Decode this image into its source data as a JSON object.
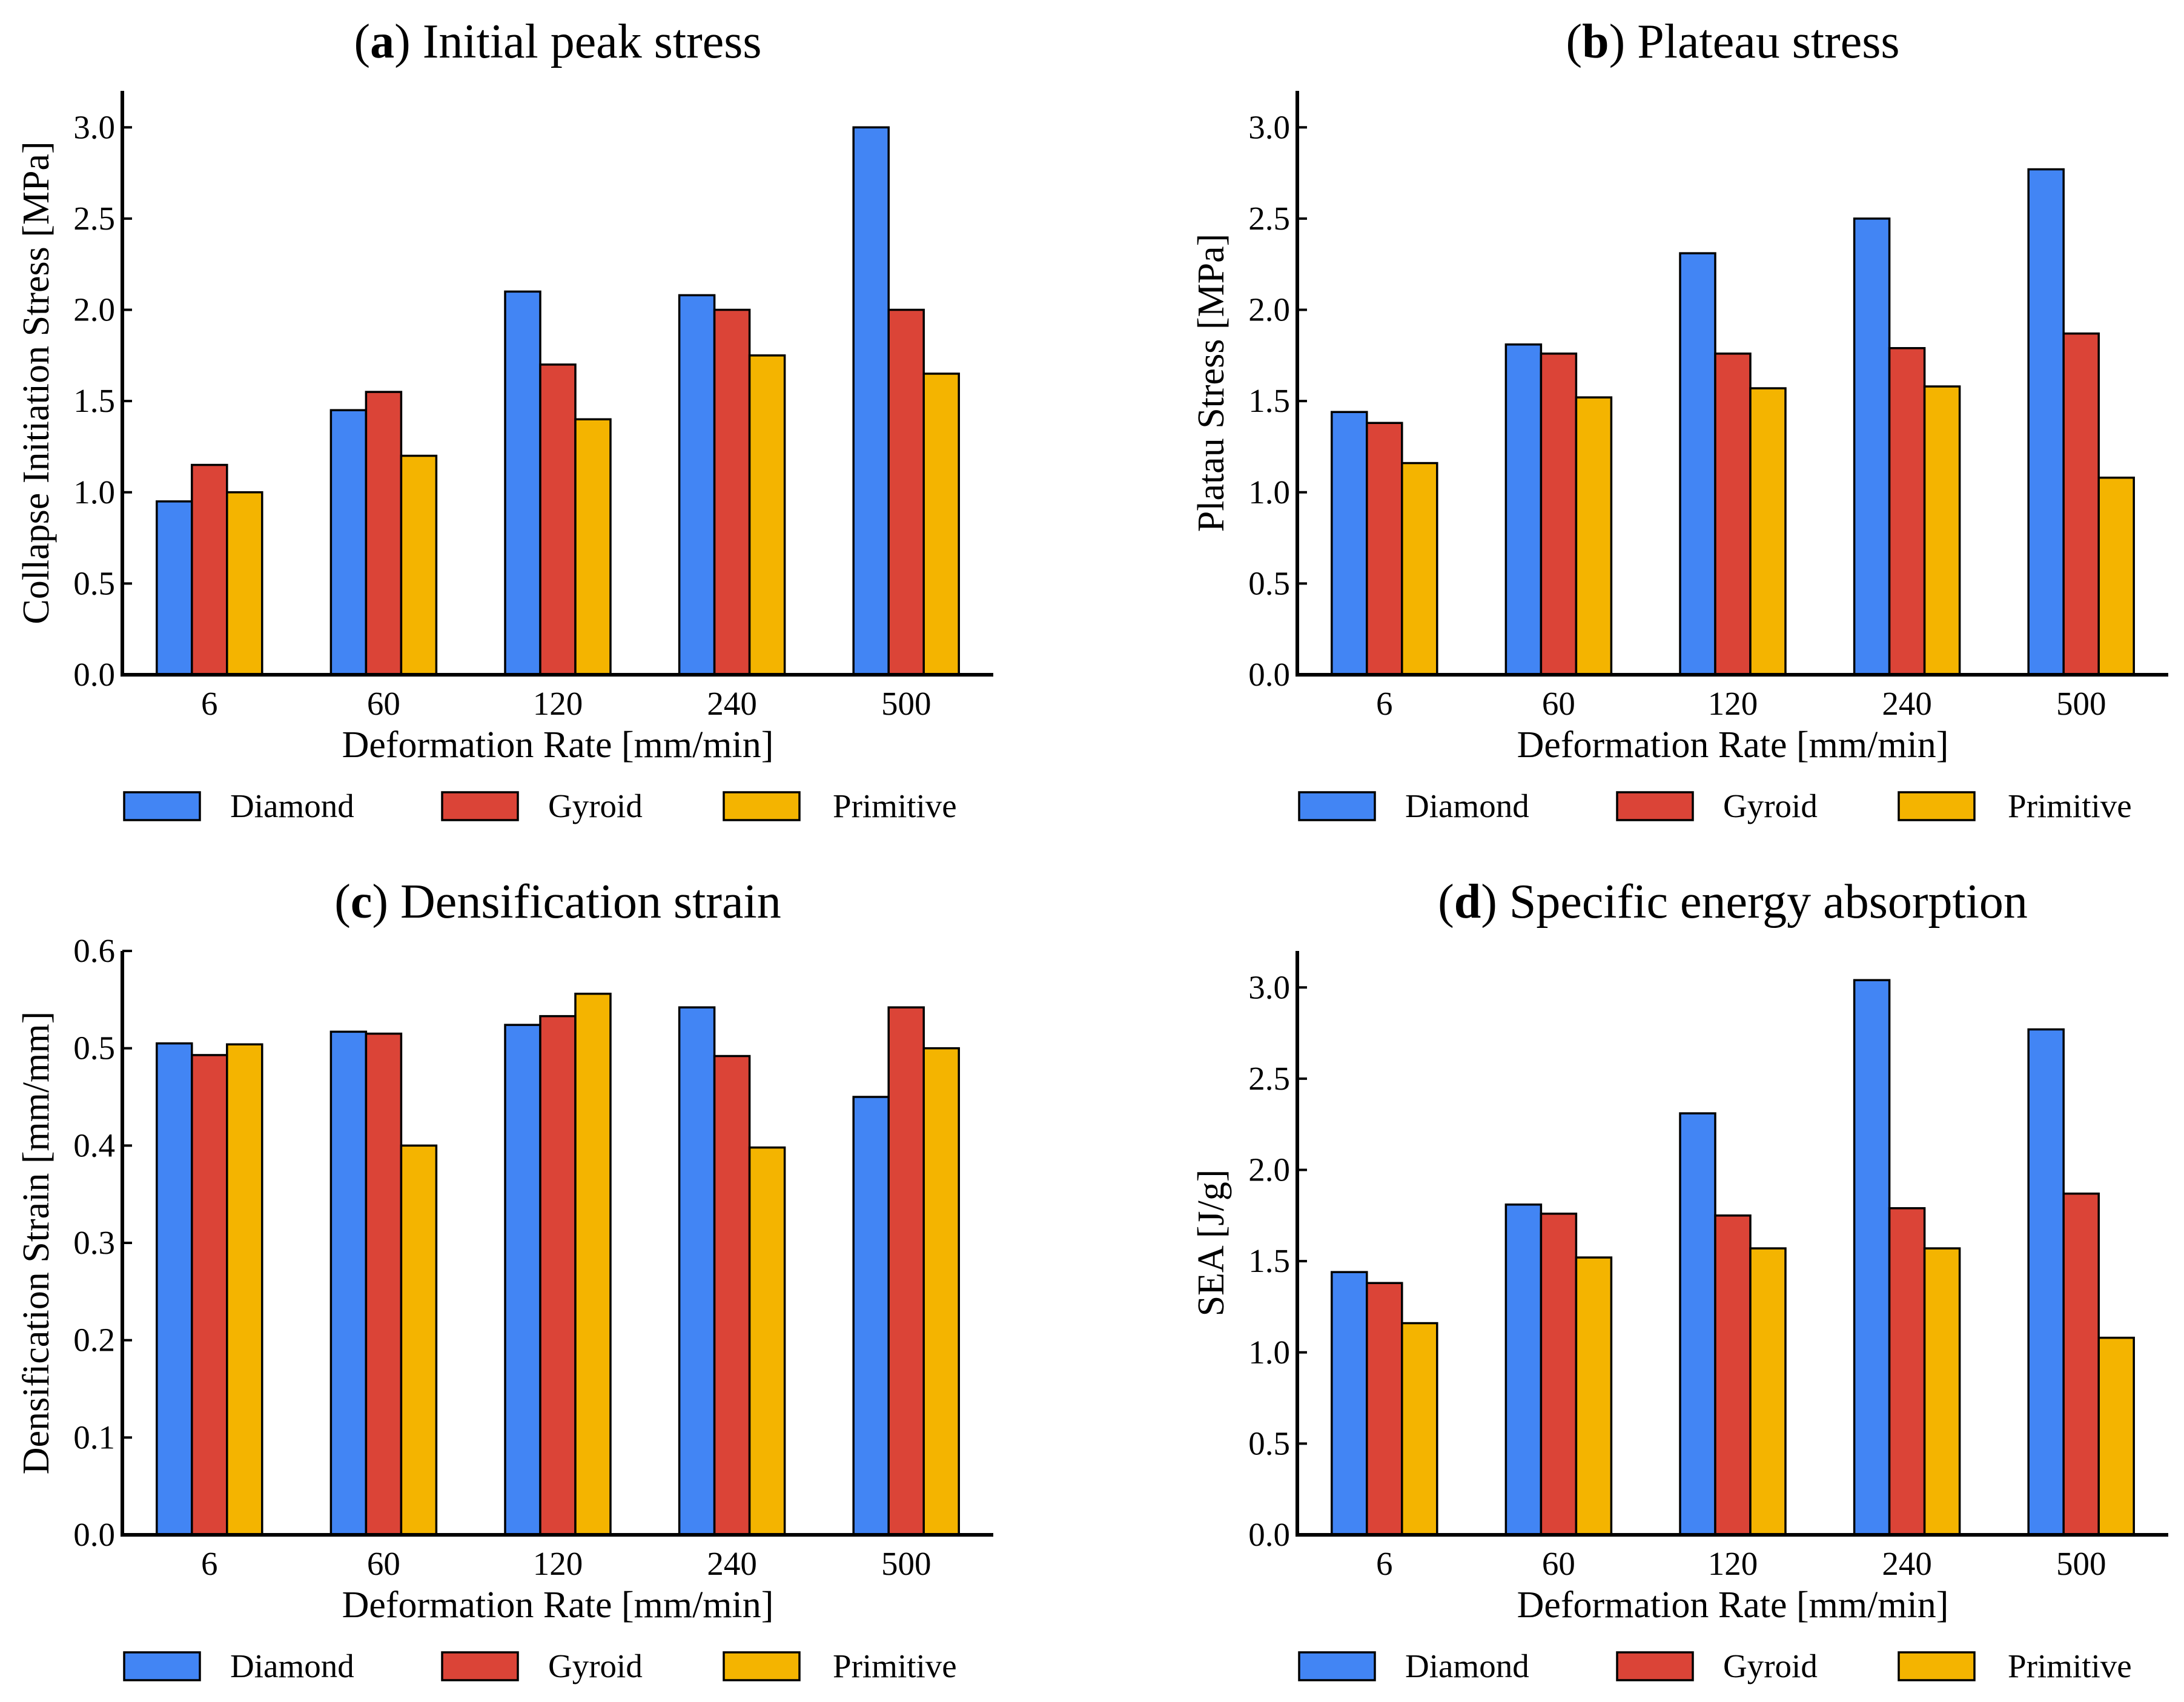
{
  "figure": {
    "colors": {
      "Diamond": "#4285f4",
      "Gyroid": "#db4437",
      "Primitive": "#f4b400"
    }
  },
  "chart_data": [
    {
      "type": "bar",
      "panel": "a",
      "title": "Initial peak stress",
      "xlabel": "Deformation Rate [mm/min]",
      "ylabel": "Collapse Initiation Stress [MPa]",
      "categories": [
        "6",
        "60",
        "120",
        "240",
        "500"
      ],
      "ylim": [
        0,
        3.2
      ],
      "yticks": [
        "0.0",
        "0.5",
        "1.0",
        "1.5",
        "2.0",
        "2.5",
        "3.0"
      ],
      "series": [
        {
          "name": "Diamond",
          "values": [
            0.95,
            1.45,
            2.1,
            2.08,
            3.0
          ]
        },
        {
          "name": "Gyroid",
          "values": [
            1.15,
            1.55,
            1.7,
            2.0,
            2.0
          ]
        },
        {
          "name": "Primitive",
          "values": [
            1.0,
            1.2,
            1.4,
            1.75,
            1.65
          ]
        }
      ],
      "legend": [
        "Diamond",
        "Gyroid",
        "Primitive"
      ]
    },
    {
      "type": "bar",
      "panel": "b",
      "title": "Plateau stress",
      "xlabel": "Deformation Rate [mm/min]",
      "ylabel": "Platau Stress [MPa]",
      "categories": [
        "6",
        "60",
        "120",
        "240",
        "500"
      ],
      "ylim": [
        0,
        3.2
      ],
      "yticks": [
        "0.0",
        "0.5",
        "1.0",
        "1.5",
        "2.0",
        "2.5",
        "3.0"
      ],
      "series": [
        {
          "name": "Diamond",
          "values": [
            1.44,
            1.81,
            2.31,
            2.5,
            2.77
          ]
        },
        {
          "name": "Gyroid",
          "values": [
            1.38,
            1.76,
            1.76,
            1.79,
            1.87
          ]
        },
        {
          "name": "Primitive",
          "values": [
            1.16,
            1.52,
            1.57,
            1.58,
            1.08
          ]
        }
      ],
      "legend": [
        "Diamond",
        "Gyroid",
        "Primitive"
      ]
    },
    {
      "type": "bar",
      "panel": "c",
      "title": "Densification strain",
      "xlabel": "Deformation Rate [mm/min]",
      "ylabel": "Densification Strain [mm/mm]",
      "categories": [
        "6",
        "60",
        "120",
        "240",
        "500"
      ],
      "ylim": [
        0,
        0.6
      ],
      "yticks": [
        "0.0",
        "0.1",
        "0.2",
        "0.3",
        "0.4",
        "0.5",
        "0.6"
      ],
      "series": [
        {
          "name": "Diamond",
          "values": [
            0.505,
            0.517,
            0.524,
            0.542,
            0.45
          ]
        },
        {
          "name": "Gyroid",
          "values": [
            0.493,
            0.515,
            0.533,
            0.492,
            0.542
          ]
        },
        {
          "name": "Primitive",
          "values": [
            0.504,
            0.4,
            0.556,
            0.398,
            0.5
          ]
        }
      ],
      "legend": [
        "Diamond",
        "Gyroid",
        "Primitive"
      ]
    },
    {
      "type": "bar",
      "panel": "d",
      "title": "Specific energy absorption",
      "xlabel": "Deformation Rate [mm/min]",
      "ylabel": "SEA [J/g]",
      "categories": [
        "6",
        "60",
        "120",
        "240",
        "500"
      ],
      "ylim": [
        0,
        3.2
      ],
      "yticks": [
        "0.0",
        "0.5",
        "1.0",
        "1.5",
        "2.0",
        "2.5",
        "3.0"
      ],
      "series": [
        {
          "name": "Diamond",
          "values": [
            1.44,
            1.81,
            2.31,
            3.04,
            2.77
          ]
        },
        {
          "name": "Gyroid",
          "values": [
            1.38,
            1.76,
            1.75,
            1.79,
            1.87
          ]
        },
        {
          "name": "Primitive",
          "values": [
            1.16,
            1.52,
            1.57,
            1.57,
            1.08
          ]
        }
      ],
      "legend": [
        "Diamond",
        "Gyroid",
        "Primitive"
      ]
    }
  ]
}
